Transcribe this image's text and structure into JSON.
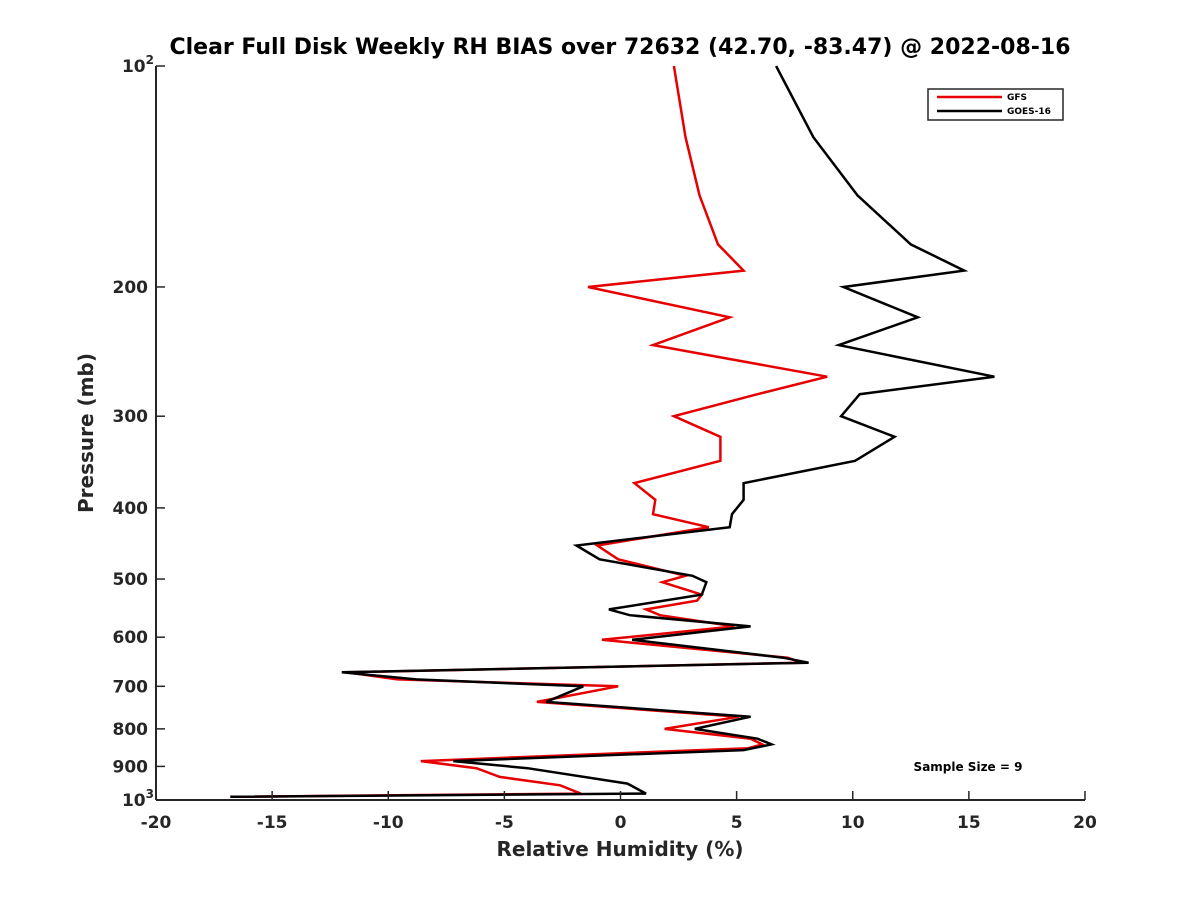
{
  "chart_data": {
    "type": "line",
    "title": "Clear Full Disk Weekly RH BIAS over 72632 (42.70, -83.47) @ 2022-08-16",
    "xlabel": "Relative Humidity (%)",
    "ylabel": "Pressure (mb)",
    "xlim": [
      -20,
      20
    ],
    "ylim": [
      1000,
      100
    ],
    "yscale": "log",
    "y_reversed": true,
    "x_ticks": [
      "-20",
      "-15",
      "-10",
      "-5",
      "0",
      "5",
      "10",
      "15",
      "20"
    ],
    "y_ticks": [
      {
        "value": 100,
        "label": "10",
        "sup": "2"
      },
      {
        "value": 200,
        "label": "200"
      },
      {
        "value": 300,
        "label": "300"
      },
      {
        "value": 400,
        "label": "400"
      },
      {
        "value": 500,
        "label": "500"
      },
      {
        "value": 600,
        "label": "600"
      },
      {
        "value": 700,
        "label": "700"
      },
      {
        "value": 800,
        "label": "800"
      },
      {
        "value": 900,
        "label": "900"
      },
      {
        "value": 1000,
        "label": "10",
        "sup": "3"
      }
    ],
    "grid": false,
    "legend_position": "top-right",
    "series": [
      {
        "name": "GFS",
        "color": "#e60000",
        "points": [
          [
            2.3,
            100
          ],
          [
            2.8,
            125
          ],
          [
            3.4,
            150
          ],
          [
            4.2,
            175
          ],
          [
            5.3,
            190
          ],
          [
            -1.4,
            200
          ],
          [
            4.7,
            220
          ],
          [
            1.4,
            240
          ],
          [
            8.9,
            265
          ],
          [
            5.9,
            280
          ],
          [
            2.3,
            300
          ],
          [
            4.3,
            320
          ],
          [
            4.3,
            345
          ],
          [
            0.6,
            370
          ],
          [
            1.5,
            390
          ],
          [
            1.4,
            408
          ],
          [
            3.8,
            425
          ],
          [
            -1.0,
            450
          ],
          [
            -0.1,
            470
          ],
          [
            2.8,
            495
          ],
          [
            1.8,
            505
          ],
          [
            3.5,
            525
          ],
          [
            3.3,
            535
          ],
          [
            1.1,
            550
          ],
          [
            1.7,
            560
          ],
          [
            4.9,
            580
          ],
          [
            -0.8,
            605
          ],
          [
            7.2,
            640
          ],
          [
            7.8,
            650
          ],
          [
            -11.8,
            670
          ],
          [
            -9.6,
            685
          ],
          [
            -0.1,
            700
          ],
          [
            -3.6,
            735
          ],
          [
            5.1,
            770
          ],
          [
            1.9,
            800
          ],
          [
            5.6,
            825
          ],
          [
            6.1,
            840
          ],
          [
            5.5,
            850
          ],
          [
            -8.6,
            885
          ],
          [
            -6.2,
            905
          ],
          [
            -5.2,
            930
          ],
          [
            -2.6,
            955
          ],
          [
            -1.7,
            980
          ],
          [
            -16.8,
            990
          ]
        ]
      },
      {
        "name": "GOES-16",
        "color": "#000000",
        "points": [
          [
            6.7,
            100
          ],
          [
            8.3,
            125
          ],
          [
            10.2,
            150
          ],
          [
            12.5,
            175
          ],
          [
            14.8,
            190
          ],
          [
            9.6,
            200
          ],
          [
            12.8,
            220
          ],
          [
            9.4,
            240
          ],
          [
            16.1,
            265
          ],
          [
            10.3,
            280
          ],
          [
            9.5,
            300
          ],
          [
            11.8,
            320
          ],
          [
            10.1,
            345
          ],
          [
            5.3,
            370
          ],
          [
            5.3,
            390
          ],
          [
            4.8,
            408
          ],
          [
            4.7,
            425
          ],
          [
            -1.9,
            450
          ],
          [
            -0.9,
            470
          ],
          [
            3.1,
            495
          ],
          [
            3.7,
            505
          ],
          [
            3.5,
            525
          ],
          [
            -0.5,
            550
          ],
          [
            0.4,
            560
          ],
          [
            5.6,
            580
          ],
          [
            0.5,
            605
          ],
          [
            7.0,
            640
          ],
          [
            8.1,
            650
          ],
          [
            -12.0,
            670
          ],
          [
            -8.8,
            685
          ],
          [
            -1.6,
            700
          ],
          [
            -3.2,
            735
          ],
          [
            5.6,
            770
          ],
          [
            3.2,
            800
          ],
          [
            5.9,
            825
          ],
          [
            6.5,
            840
          ],
          [
            5.3,
            855
          ],
          [
            -7.2,
            885
          ],
          [
            -4.0,
            905
          ],
          [
            0.3,
            950
          ],
          [
            1.1,
            980
          ],
          [
            -16.8,
            990
          ]
        ]
      }
    ],
    "annotation": "Sample Size = 9"
  }
}
